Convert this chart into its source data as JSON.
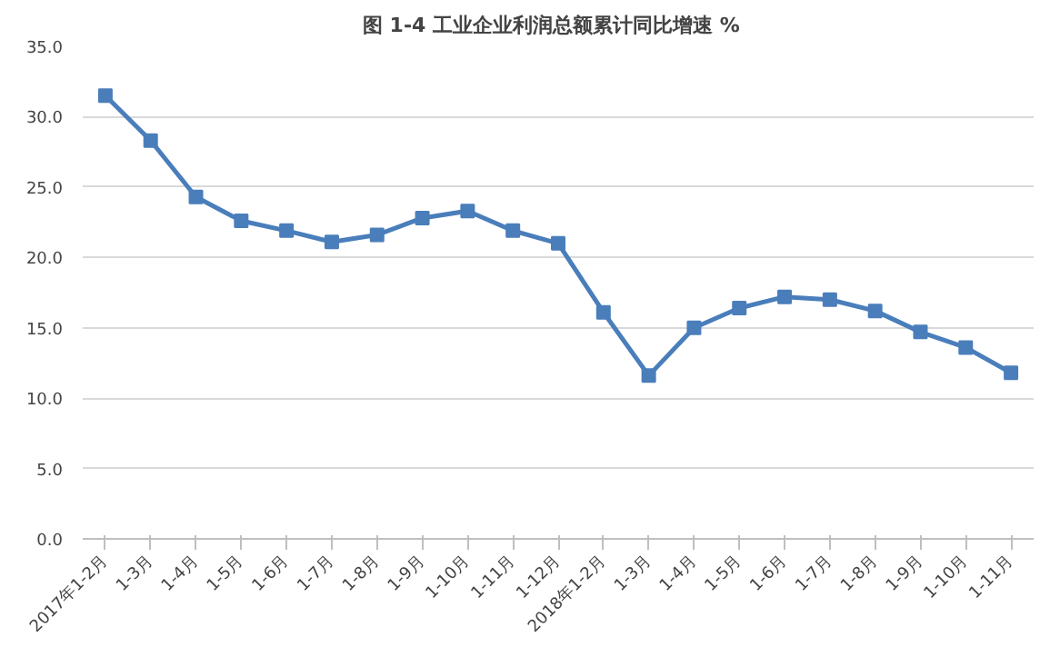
{
  "chart_data": {
    "type": "line",
    "title": "图 1-4   工业企业利润总额累计同比增速 %",
    "categories": [
      "2017年1-2月",
      "1-3月",
      "1-4月",
      "1-5月",
      "1-6月",
      "1-7月",
      "1-8月",
      "1-9月",
      "1-10月",
      "1-11月",
      "1-12月",
      "2018年1-2月",
      "1-3月",
      "1-4月",
      "1-5月",
      "1-6月",
      "1-7月",
      "1-8月",
      "1-9月",
      "1-10月",
      "1-11月"
    ],
    "series": [
      {
        "color": "#4a7ebb",
        "values": [
          31.5,
          28.3,
          24.3,
          22.6,
          21.9,
          21.1,
          21.6,
          22.8,
          23.3,
          21.9,
          21.0,
          16.1,
          11.6,
          15.0,
          16.4,
          17.2,
          17.0,
          16.2,
          14.7,
          13.6,
          11.8
        ]
      }
    ],
    "ylim": [
      0,
      35
    ],
    "yticks": [
      {
        "value": 0,
        "label": "0.0"
      },
      {
        "value": 5,
        "label": "5.0"
      },
      {
        "value": 10,
        "label": "10.0"
      },
      {
        "value": 15,
        "label": "15.0"
      },
      {
        "value": 20,
        "label": "20.0"
      },
      {
        "value": 25,
        "label": "25.0"
      },
      {
        "value": 30,
        "label": "30.0"
      },
      {
        "value": 35,
        "label": "35.0"
      }
    ],
    "grid": "y",
    "marker": "square",
    "line_style": "solid"
  }
}
